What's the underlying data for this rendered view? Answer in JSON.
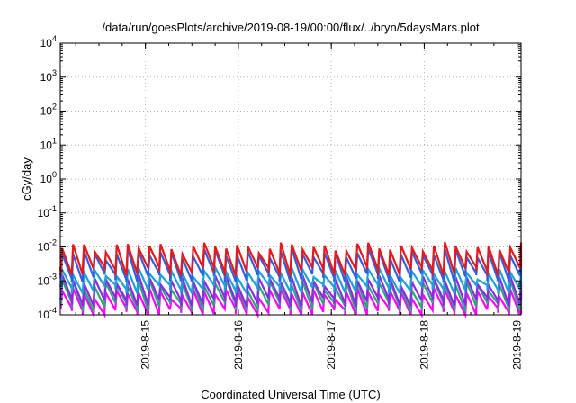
{
  "chart_data": {
    "type": "line",
    "title": "/data/run/goesPlots/archive/2019-08-19/00:00/flux/../bryn/5daysMars.plot",
    "xlabel": "Coordinated Universal Time (UTC)",
    "ylabel": "cGy/day",
    "y_scale": "log",
    "ylim": [
      0.0001,
      10000
    ],
    "y_ticks": [
      {
        "base": "10",
        "exp": "-4",
        "value": 0.0001
      },
      {
        "base": "10",
        "exp": "-3",
        "value": 0.001
      },
      {
        "base": "10",
        "exp": "-2",
        "value": 0.01
      },
      {
        "base": "10",
        "exp": "-1",
        "value": 0.1
      },
      {
        "base": "10",
        "exp": "0",
        "value": 1
      },
      {
        "base": "10",
        "exp": "1",
        "value": 10
      },
      {
        "base": "10",
        "exp": "2",
        "value": 100
      },
      {
        "base": "10",
        "exp": "3",
        "value": 1000
      },
      {
        "base": "10",
        "exp": "4",
        "value": 10000
      }
    ],
    "xlim": [
      "2019-08-14 02:00",
      "2019-08-19 01:00"
    ],
    "x_ticks": [
      {
        "label": "2019-8-15",
        "date": "2019-08-15"
      },
      {
        "label": "2019-8-16",
        "date": "2019-08-16"
      },
      {
        "label": "2019-8-17",
        "date": "2019-08-17"
      },
      {
        "label": "2019-8-18",
        "date": "2019-08-18"
      },
      {
        "label": "2019-8-19",
        "date": "2019-08-19"
      }
    ],
    "grid": true,
    "legend": "none",
    "series_style": "sawtooth",
    "sawtooth_cycles_per_day": 8.5,
    "series": [
      {
        "color": "#ff00ff",
        "values": [
          0.00045,
          0.00012
        ]
      },
      {
        "color": "#2aa87a",
        "values": [
          0.0008,
          0.00018
        ]
      },
      {
        "color": "#8a2be2",
        "values": [
          0.0011,
          0.00025
        ]
      },
      {
        "color": "#20a0d8",
        "values": [
          0.0018,
          0.0006
        ]
      },
      {
        "color": "#3060e0",
        "values": [
          0.0065,
          0.0013
        ]
      },
      {
        "color": "#e41a1c",
        "values": [
          0.01,
          0.002
        ]
      }
    ]
  }
}
